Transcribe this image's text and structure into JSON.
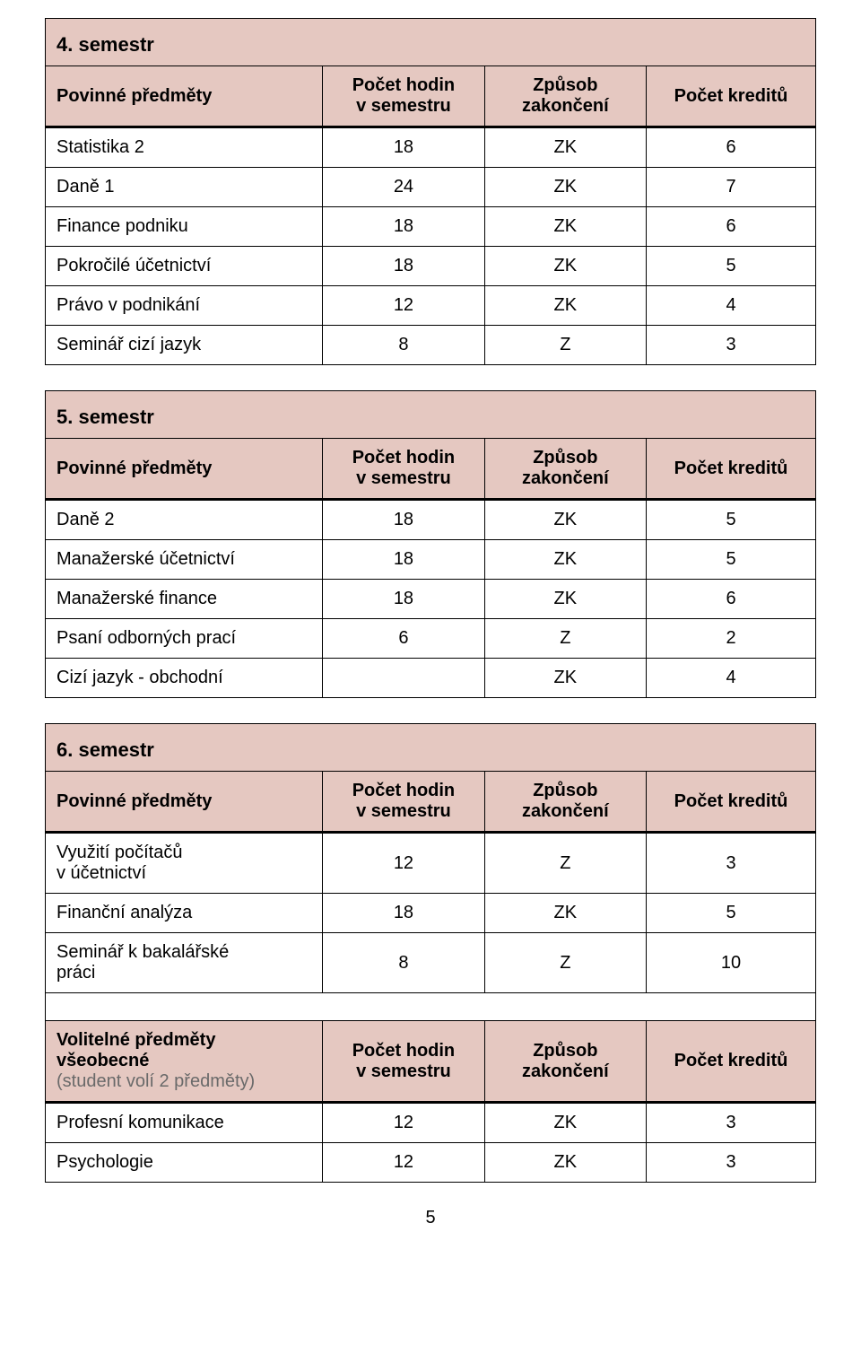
{
  "colors": {
    "background": "#ffffff",
    "text": "#000000",
    "muted": "#6a6a6a",
    "border": "#000000",
    "section_bg": "#e5c8c1"
  },
  "columns": {
    "name": "Povinné předměty",
    "hours": "Počet hodin\nv semestru",
    "method": "Způsob\nzakončení",
    "credits": "Počet kreditů"
  },
  "columns_elective": {
    "name_l1": "Volitelné předměty",
    "name_l2": "všeobecné",
    "name_l3": "(student volí 2 předměty)"
  },
  "sections": [
    {
      "title": "4. semestr",
      "rows": [
        {
          "name": "Statistika 2",
          "hours": "18",
          "method": "ZK",
          "credits": "6"
        },
        {
          "name": "Daně 1",
          "hours": "24",
          "method": "ZK",
          "credits": "7"
        },
        {
          "name": "Finance podniku",
          "hours": "18",
          "method": "ZK",
          "credits": "6"
        },
        {
          "name": "Pokročilé účetnictví",
          "hours": "18",
          "method": "ZK",
          "credits": "5"
        },
        {
          "name": "Právo v podnikání",
          "hours": "12",
          "method": "ZK",
          "credits": "4"
        },
        {
          "name": "Seminář cizí jazyk",
          "hours": "8",
          "method": "Z",
          "credits": "3"
        }
      ]
    },
    {
      "title": "5. semestr",
      "rows": [
        {
          "name": "Daně 2",
          "hours": "18",
          "method": "ZK",
          "credits": "5"
        },
        {
          "name": "Manažerské účetnictví",
          "hours": "18",
          "method": "ZK",
          "credits": "5"
        },
        {
          "name": "Manažerské finance",
          "hours": "18",
          "method": "ZK",
          "credits": "6"
        },
        {
          "name": "Psaní odborných prací",
          "hours": "6",
          "method": "Z",
          "credits": "2"
        },
        {
          "name": "Cizí jazyk - obchodní",
          "hours": "",
          "method": "ZK",
          "credits": "4"
        }
      ]
    },
    {
      "title": "6. semestr",
      "rows": [
        {
          "name": "Využití počítačů\nv účetnictví",
          "hours": "12",
          "method": "Z",
          "credits": "3"
        },
        {
          "name": "Finanční analýza",
          "hours": "18",
          "method": "ZK",
          "credits": "5"
        },
        {
          "name": "Seminář k bakalářské\npráci",
          "hours": "8",
          "method": "Z",
          "credits": "10"
        }
      ],
      "elective_rows": [
        {
          "name": "Profesní komunikace",
          "hours": "12",
          "method": "ZK",
          "credits": "3"
        },
        {
          "name": "Psychologie",
          "hours": "12",
          "method": "ZK",
          "credits": "3"
        }
      ]
    }
  ],
  "page_number": "5"
}
